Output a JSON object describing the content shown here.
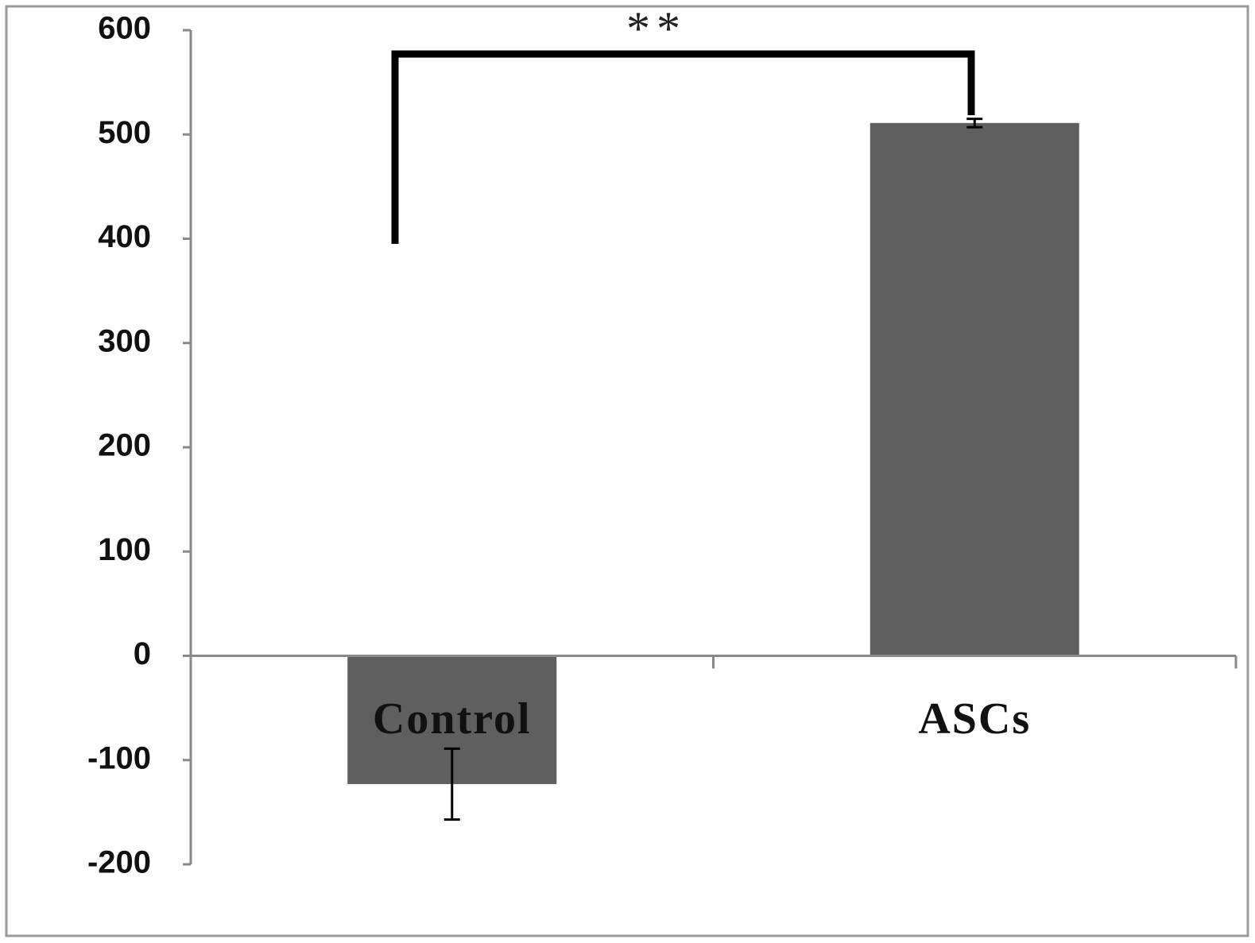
{
  "chart_data": {
    "type": "bar",
    "categories": [
      "Control",
      "ASCs"
    ],
    "values": [
      -123,
      511
    ],
    "errors": [
      34,
      4
    ],
    "color": "#5f5f5f",
    "ylim": [
      -200,
      600
    ],
    "yticks": [
      -200,
      -100,
      0,
      100,
      200,
      300,
      400,
      500,
      600
    ],
    "grid": false,
    "annotation": "**"
  }
}
